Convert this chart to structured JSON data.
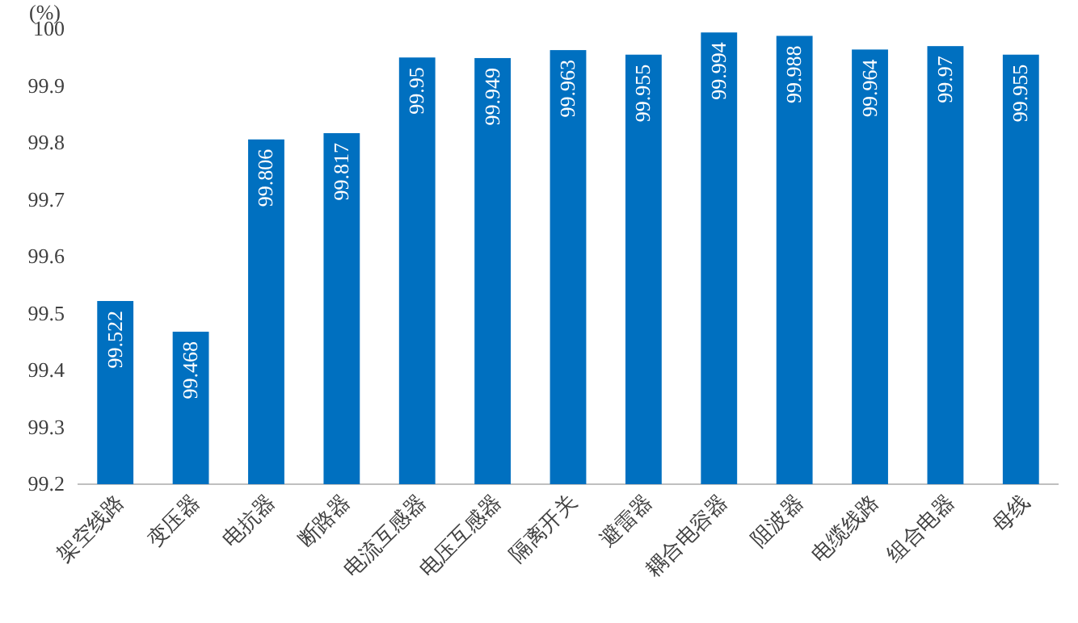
{
  "chart_data": {
    "type": "bar",
    "ylabel": "(%)",
    "categories": [
      "架空线路",
      "变压器",
      "电抗器",
      "断路器",
      "电流互感器",
      "电压互感器",
      "隔离开关",
      "避雷器",
      "耦合电容器",
      "阻波器",
      "电缆线路",
      "组合电器",
      "母线"
    ],
    "values": [
      99.522,
      99.468,
      99.806,
      99.817,
      99.95,
      99.949,
      99.963,
      99.955,
      99.994,
      99.988,
      99.964,
      99.97,
      99.955
    ],
    "color": "#0070c0",
    "data_labels": true,
    "ylim": [
      99.2,
      100
    ],
    "yticks": [
      99.2,
      99.3,
      99.4,
      99.5,
      99.6,
      99.7,
      99.8,
      99.9,
      100
    ]
  }
}
